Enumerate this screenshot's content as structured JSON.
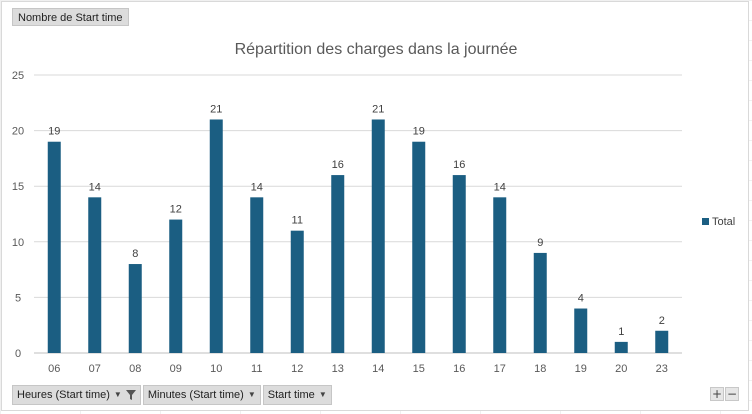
{
  "pivot": {
    "value_field": "Nombre de Start time",
    "axis_fields": [
      {
        "label": "Heures (Start time)",
        "filtered": true
      },
      {
        "label": "Minutes (Start time)",
        "filtered": false
      },
      {
        "label": "Start time",
        "filtered": false
      }
    ],
    "zoom_in": "+",
    "zoom_out": "−"
  },
  "chart_data": {
    "type": "bar",
    "title": "Répartition des charges dans la journée",
    "xlabel": "",
    "ylabel": "",
    "categories": [
      "06",
      "07",
      "08",
      "09",
      "10",
      "11",
      "12",
      "13",
      "14",
      "15",
      "16",
      "17",
      "18",
      "19",
      "20",
      "23"
    ],
    "series": [
      {
        "name": "Total",
        "values": [
          19,
          14,
          8,
          12,
          21,
          14,
          11,
          16,
          21,
          19,
          16,
          14,
          9,
          4,
          1,
          2
        ],
        "color": "#1b5e82"
      }
    ],
    "ylim": [
      0,
      25
    ],
    "yticks": [
      0,
      5,
      10,
      15,
      20,
      25
    ],
    "grid": true,
    "data_labels": true,
    "legend_position": "right"
  }
}
